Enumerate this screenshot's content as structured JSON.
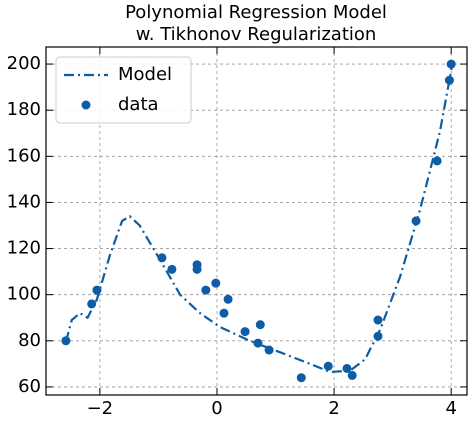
{
  "chart_data": {
    "type": "line",
    "title": [
      "Polynomial Regression Model",
      "w. Tikhonov Regularization"
    ],
    "xlim": [
      -2.92,
      4.27
    ],
    "ylim": [
      56.5,
      207.4
    ],
    "xticks": [
      {
        "value": -2,
        "label": "−2"
      },
      0,
      2,
      4
    ],
    "yticks": [
      60,
      80,
      100,
      120,
      140,
      160,
      180,
      200
    ],
    "grid": true,
    "legend": "upper left",
    "series": [
      {
        "name": "Model",
        "type": "line",
        "color": "#0c5da5",
        "x": [
          -2.58,
          -2.48,
          -2.34,
          -2.21,
          -2.05,
          -1.83,
          -1.62,
          -1.49,
          -1.32,
          -0.97,
          -0.63,
          -0.29,
          0.05,
          0.56,
          1.08,
          1.59,
          1.93,
          2.27,
          2.53,
          2.79,
          3.13,
          3.47,
          3.81,
          4.02
        ],
        "values": [
          79.6,
          89,
          92,
          90,
          98,
          117,
          132,
          134,
          130,
          115,
          100,
          92,
          86,
          80,
          75,
          70,
          66.5,
          67,
          72,
          85,
          108,
          137,
          171,
          200
        ]
      },
      {
        "name": "data",
        "type": "scatter",
        "color": "#0c5da5",
        "x": [
          -2.58,
          -2.14,
          -2.05,
          -0.94,
          -0.77,
          -0.34,
          -0.34,
          -0.19,
          -0.02,
          0.12,
          0.19,
          0.48,
          0.7,
          0.74,
          0.89,
          1.44,
          1.9,
          2.22,
          2.31,
          2.75,
          2.75,
          3.4,
          3.76,
          3.97,
          4.0
        ],
        "values": [
          80,
          96,
          102,
          116,
          111,
          113,
          111,
          102,
          105,
          92,
          98,
          84,
          79,
          87,
          76,
          64,
          69,
          68,
          65,
          82,
          89,
          132,
          158,
          193,
          200
        ]
      }
    ]
  }
}
